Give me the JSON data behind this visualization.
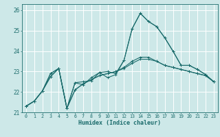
{
  "xlabel": "Humidex (Indice chaleur)",
  "ylabel": "",
  "bg_color": "#cde8e8",
  "grid_color": "#b0d4d4",
  "line_color": "#1a6b6b",
  "xlim": [
    -0.5,
    23.5
  ],
  "ylim": [
    21.0,
    26.3
  ],
  "xticks": [
    0,
    1,
    2,
    3,
    4,
    5,
    6,
    7,
    8,
    9,
    10,
    11,
    12,
    13,
    14,
    15,
    16,
    17,
    18,
    19,
    20,
    21,
    22,
    23
  ],
  "yticks": [
    21,
    22,
    23,
    24,
    25,
    26
  ],
  "series": [
    [
      21.3,
      21.55,
      22.05,
      22.9,
      23.15,
      21.2,
      22.45,
      22.5,
      22.55,
      22.95,
      22.7,
      22.85,
      23.55,
      25.1,
      25.85,
      25.45,
      25.2,
      24.65,
      24.0,
      23.3,
      23.3,
      23.1,
      22.85,
      22.5
    ],
    [
      21.3,
      21.55,
      22.05,
      22.9,
      23.15,
      21.2,
      22.45,
      22.35,
      22.7,
      22.95,
      23.0,
      22.9,
      23.55,
      25.1,
      25.85,
      25.45,
      25.2,
      24.65,
      24.0,
      23.3,
      23.3,
      23.1,
      22.85,
      22.5
    ],
    [
      21.3,
      21.55,
      22.05,
      22.75,
      23.15,
      21.2,
      22.1,
      22.4,
      22.6,
      22.8,
      22.9,
      23.0,
      23.2,
      23.5,
      23.7,
      23.7,
      23.5,
      23.3,
      23.2,
      23.1,
      23.0,
      22.9,
      22.8,
      22.5
    ],
    [
      21.3,
      21.55,
      22.05,
      22.75,
      23.15,
      21.2,
      22.1,
      22.4,
      22.6,
      22.8,
      22.9,
      23.0,
      23.15,
      23.4,
      23.6,
      23.6,
      23.5,
      23.3,
      23.2,
      23.1,
      23.0,
      22.9,
      22.8,
      22.5
    ]
  ]
}
